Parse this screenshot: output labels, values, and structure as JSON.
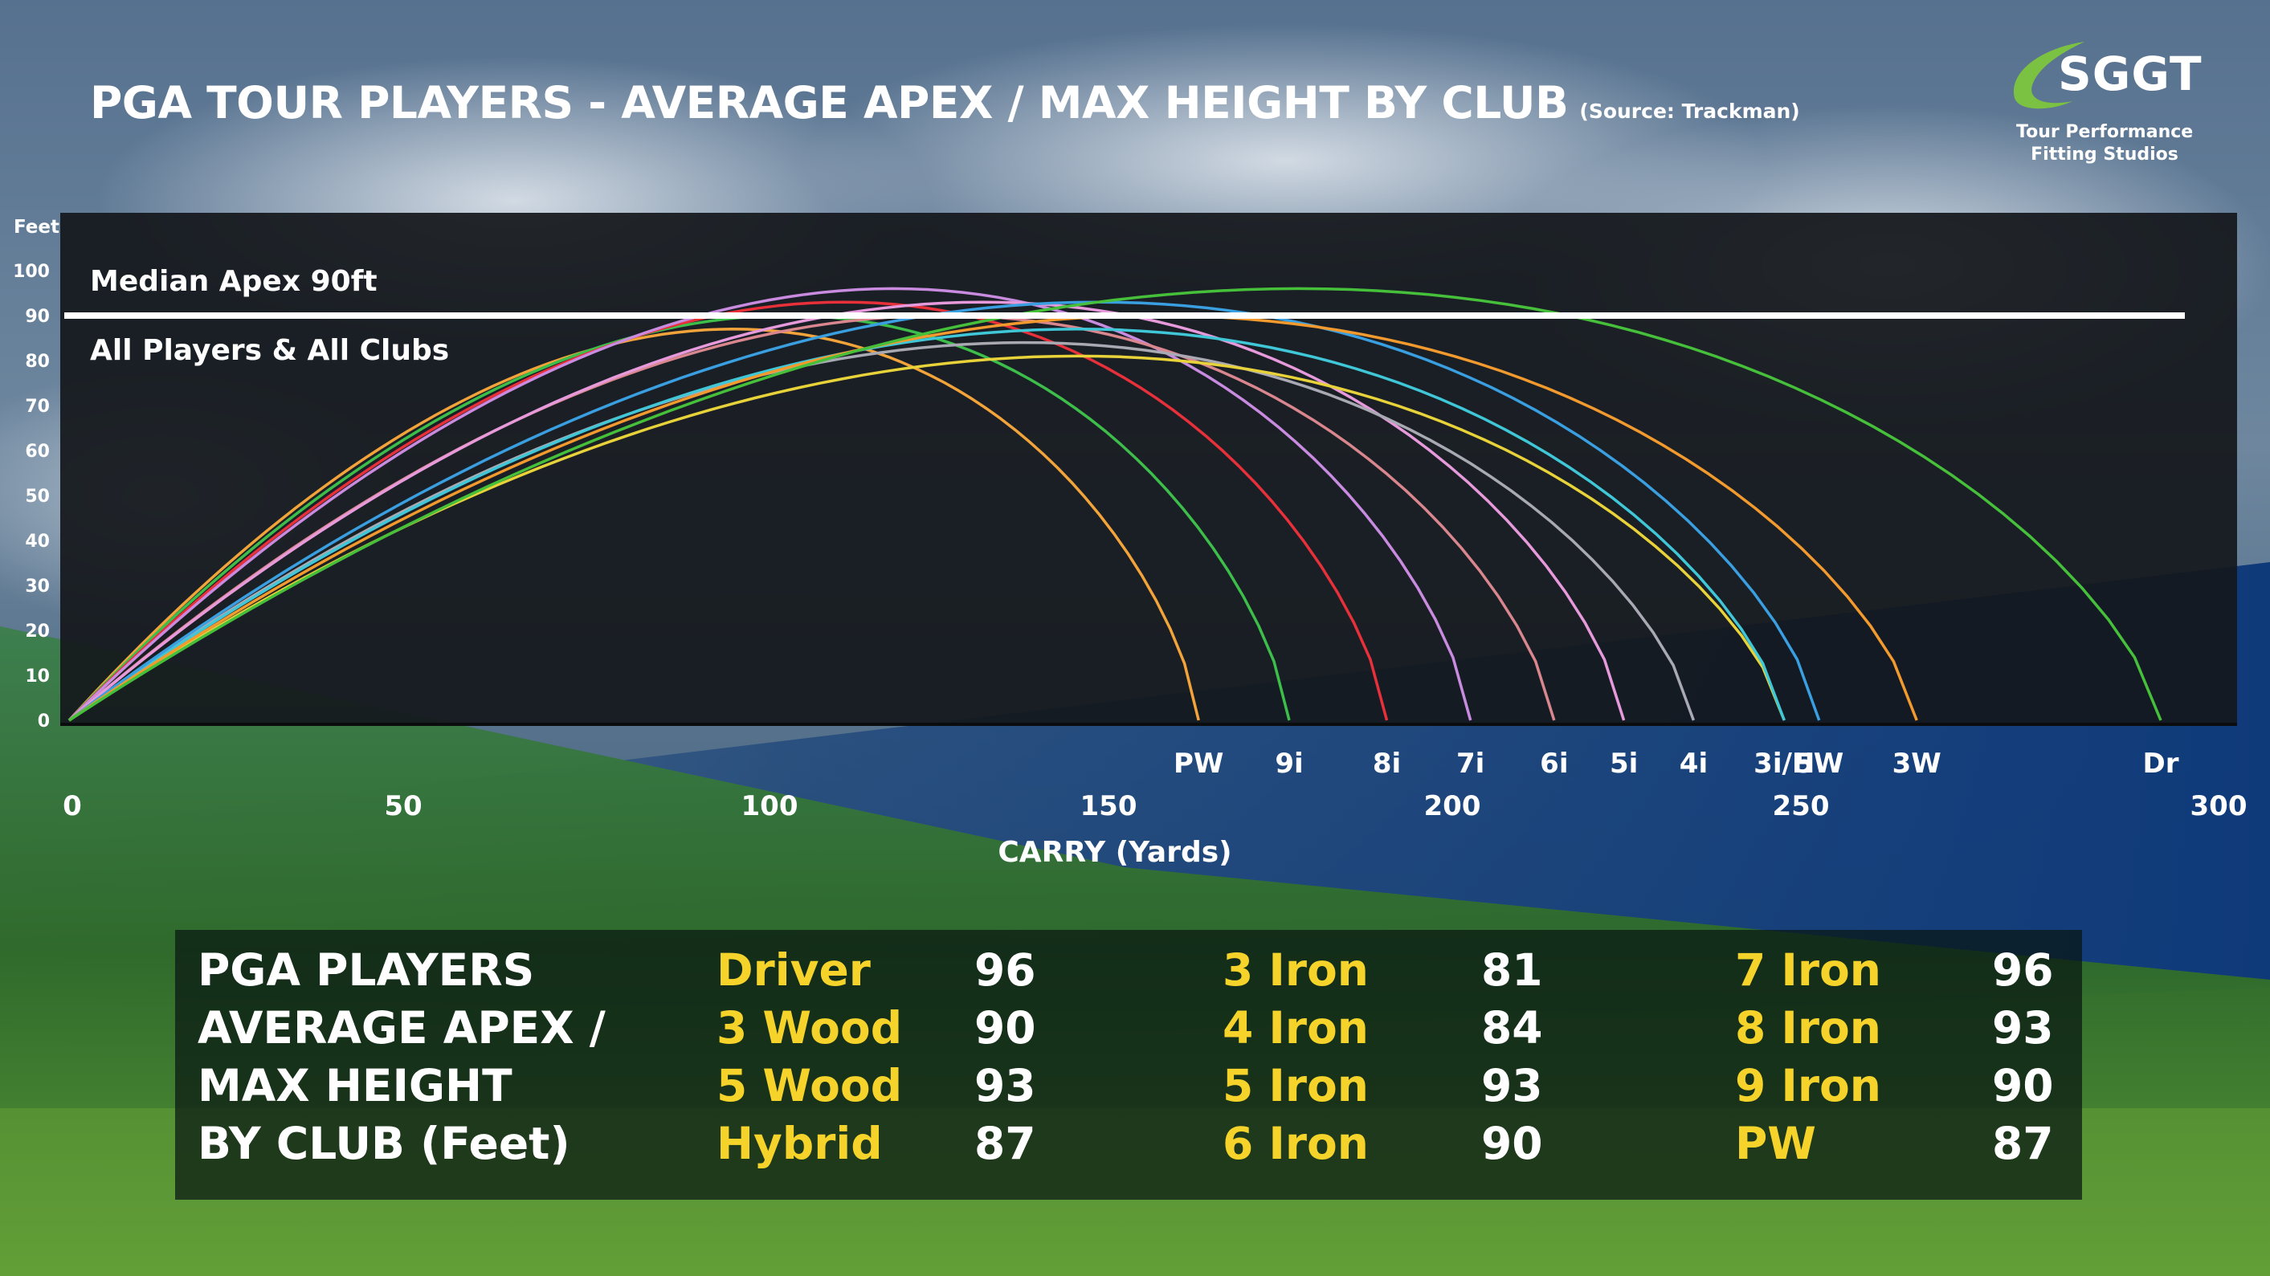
{
  "header": {
    "title": "PGA TOUR PLAYERS - AVERAGE APEX / MAX HEIGHT BY CLUB",
    "source": "(Source: Trackman)"
  },
  "logo": {
    "name": "SGGT",
    "line1": "Tour Performance",
    "line2": "Fitting Studios"
  },
  "chart_data": {
    "type": "line",
    "xlabel": "CARRY (Yards)",
    "ylabel": "Feet",
    "xlim": [
      0,
      300
    ],
    "ylim": [
      0,
      100
    ],
    "xticks": [
      "0",
      "50",
      "100",
      "150",
      "200",
      "250",
      "300"
    ],
    "yticks": [
      "0",
      "10",
      "20",
      "30",
      "40",
      "50",
      "60",
      "70",
      "80",
      "90",
      "100"
    ],
    "reference_line": {
      "y": 90,
      "label": "Median Apex 90ft",
      "sublabel": "All Players & All Clubs"
    },
    "series": [
      {
        "name": "PW",
        "carry": 162,
        "apex": 87,
        "color": "#F2A33A"
      },
      {
        "name": "9i",
        "carry": 175,
        "apex": 90,
        "color": "#3DBE4A"
      },
      {
        "name": "8i",
        "carry": 189,
        "apex": 93,
        "color": "#E8303A"
      },
      {
        "name": "7i",
        "carry": 201,
        "apex": 96,
        "color": "#C98BE0"
      },
      {
        "name": "6i",
        "carry": 213,
        "apex": 90,
        "color": "#D9868E"
      },
      {
        "name": "5i",
        "carry": 223,
        "apex": 93,
        "color": "#E79ADB"
      },
      {
        "name": "4i",
        "carry": 233,
        "apex": 84,
        "color": "#A9A9B4"
      },
      {
        "name": "3i/H",
        "carry": 246,
        "apex": 81,
        "color": "#E8D23A"
      },
      {
        "name": "3i/H",
        "carry": 246,
        "apex": 87,
        "color": "#3FC7D8"
      },
      {
        "name": "5W",
        "carry": 251,
        "apex": 93,
        "color": "#3A9FE0"
      },
      {
        "name": "3W",
        "carry": 265,
        "apex": 90,
        "color": "#F29A2E"
      },
      {
        "name": "Dr",
        "carry": 300,
        "apex": 96,
        "color": "#46C03A"
      }
    ]
  },
  "table": {
    "label_lines": [
      "PGA PLAYERS",
      "AVERAGE APEX /",
      "MAX HEIGHT",
      "BY CLUB (Feet)"
    ],
    "columns": [
      [
        {
          "club": "Driver",
          "value": "96"
        },
        {
          "club": "3 Wood",
          "value": "90"
        },
        {
          "club": "5 Wood",
          "value": "93"
        },
        {
          "club": "Hybrid",
          "value": "87"
        }
      ],
      [
        {
          "club": "3 Iron",
          "value": "81"
        },
        {
          "club": "4 Iron",
          "value": "84"
        },
        {
          "club": "5 Iron",
          "value": "93"
        },
        {
          "club": "6 Iron",
          "value": "90"
        }
      ],
      [
        {
          "club": "7 Iron",
          "value": "96"
        },
        {
          "club": "8 Iron",
          "value": "93"
        },
        {
          "club": "9 Iron",
          "value": "90"
        },
        {
          "club": "PW",
          "value": "87"
        }
      ]
    ]
  },
  "colors": {
    "club_text": "#F5D32A",
    "plot_bg": "#14181c",
    "reference_line": "#FFFFFF"
  }
}
